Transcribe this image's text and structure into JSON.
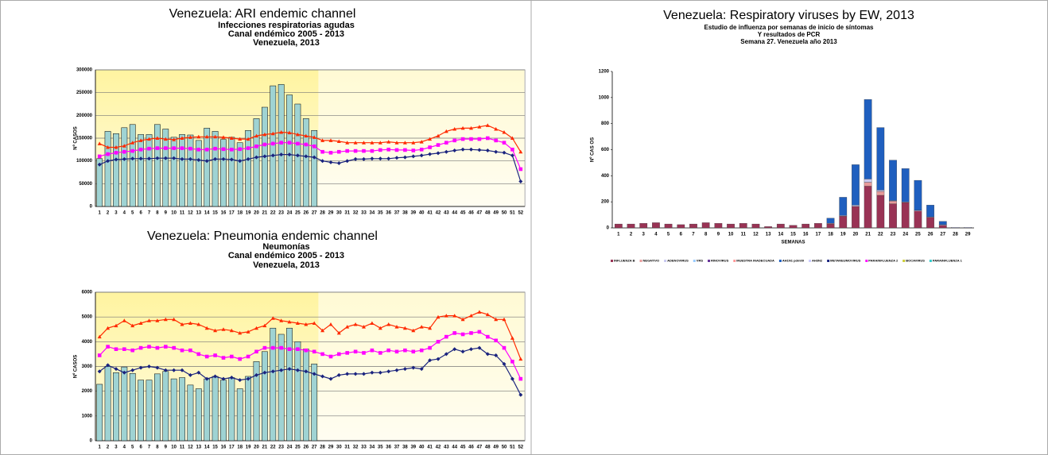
{
  "chart_data": [
    {
      "type": "combo",
      "title": "Venezuela: ARI endemic channel",
      "subtitles": [
        "Infecciones respiratorias agudas",
        "Canal endémico 2005 - 2013",
        "Venezuela, 2013"
      ],
      "ylabel": "Nº CASOS",
      "categories": [
        "1",
        "2",
        "3",
        "4",
        "5",
        "6",
        "7",
        "8",
        "9",
        "10",
        "11",
        "12",
        "13",
        "14",
        "15",
        "16",
        "17",
        "18",
        "19",
        "20",
        "21",
        "22",
        "23",
        "24",
        "25",
        "26",
        "27",
        "28",
        "29",
        "30",
        "31",
        "32",
        "33",
        "34",
        "35",
        "36",
        "37",
        "38",
        "39",
        "40",
        "41",
        "42",
        "43",
        "44",
        "45",
        "46",
        "47",
        "48",
        "49",
        "50",
        "51",
        "52"
      ],
      "ylim": [
        0,
        300000
      ],
      "yticks": [
        0,
        50000,
        100000,
        150000,
        200000,
        250000,
        300000
      ],
      "grid": true,
      "series": [
        {
          "type": "bar",
          "color": "#9fd3d3",
          "values": [
            105000,
            165000,
            160000,
            173000,
            180000,
            158000,
            158000,
            180000,
            170000,
            152000,
            158000,
            157000,
            145000,
            172000,
            165000,
            147000,
            152000,
            140000,
            167000,
            193000,
            218000,
            265000,
            268000,
            245000,
            225000,
            193000,
            167000,
            null,
            null,
            null,
            null,
            null,
            null,
            null,
            null,
            null,
            null,
            null,
            null,
            null,
            null,
            null,
            null,
            null,
            null,
            null,
            null,
            null,
            null,
            null,
            null,
            null
          ]
        },
        {
          "type": "line",
          "marker": "triangle",
          "color": "#ff2a00",
          "values": [
            138000,
            130000,
            130000,
            133000,
            140000,
            145000,
            148000,
            150000,
            148000,
            147000,
            150000,
            152000,
            153000,
            153000,
            153000,
            152000,
            150000,
            148000,
            148000,
            155000,
            158000,
            160000,
            163000,
            162000,
            158000,
            155000,
            152000,
            145000,
            145000,
            143000,
            140000,
            140000,
            140000,
            140000,
            140000,
            142000,
            140000,
            140000,
            140000,
            142000,
            148000,
            155000,
            165000,
            170000,
            172000,
            172000,
            175000,
            178000,
            170000,
            163000,
            150000,
            120000
          ]
        },
        {
          "type": "line",
          "marker": "square",
          "color": "#ff00ff",
          "values": [
            110000,
            115000,
            118000,
            120000,
            122000,
            125000,
            127000,
            128000,
            128000,
            128000,
            128000,
            127000,
            125000,
            125000,
            127000,
            126000,
            125000,
            126000,
            128000,
            132000,
            136000,
            138000,
            140000,
            140000,
            138000,
            136000,
            132000,
            120000,
            118000,
            120000,
            122000,
            122000,
            122000,
            122000,
            124000,
            125000,
            124000,
            124000,
            123000,
            125000,
            130000,
            135000,
            140000,
            145000,
            148000,
            148000,
            148000,
            150000,
            145000,
            140000,
            125000,
            82000
          ]
        },
        {
          "type": "line",
          "marker": "diamond",
          "color": "#1a237e",
          "values": [
            92000,
            100000,
            103000,
            104000,
            105000,
            105000,
            105000,
            106000,
            106000,
            106000,
            104000,
            104000,
            102000,
            100000,
            104000,
            104000,
            103000,
            100000,
            104000,
            108000,
            110000,
            112000,
            114000,
            114000,
            112000,
            110000,
            108000,
            100000,
            97000,
            95000,
            100000,
            104000,
            104000,
            105000,
            105000,
            105000,
            107000,
            108000,
            110000,
            112000,
            115000,
            117000,
            120000,
            123000,
            125000,
            125000,
            124000,
            123000,
            120000,
            118000,
            112000,
            55000
          ]
        }
      ]
    },
    {
      "type": "combo",
      "title": "Venezuela: Pneumonia endemic channel",
      "subtitles": [
        "Neumonías",
        "Canal endémico 2005 - 2013",
        "Venezuela, 2013"
      ],
      "ylabel": "Nº CASOS",
      "categories": [
        "1",
        "2",
        "3",
        "4",
        "5",
        "6",
        "7",
        "8",
        "9",
        "10",
        "11",
        "12",
        "13",
        "14",
        "15",
        "16",
        "17",
        "18",
        "19",
        "20",
        "21",
        "22",
        "23",
        "24",
        "25",
        "26",
        "27",
        "28",
        "29",
        "30",
        "31",
        "32",
        "33",
        "34",
        "35",
        "36",
        "37",
        "38",
        "39",
        "40",
        "41",
        "42",
        "43",
        "44",
        "45",
        "46",
        "47",
        "48",
        "49",
        "50",
        "51",
        "52"
      ],
      "ylim": [
        0,
        6000
      ],
      "yticks": [
        0,
        1000,
        2000,
        3000,
        4000,
        5000,
        6000
      ],
      "grid": true,
      "series": [
        {
          "type": "bar",
          "color": "#9fd3d3",
          "values": [
            2280,
            3000,
            2750,
            2980,
            2720,
            2450,
            2450,
            2700,
            2800,
            2500,
            2550,
            2250,
            2100,
            2500,
            2600,
            2450,
            2550,
            2100,
            2600,
            3200,
            3600,
            4550,
            4300,
            4550,
            4000,
            3700,
            3100,
            null,
            null,
            null,
            null,
            null,
            null,
            null,
            null,
            null,
            null,
            null,
            null,
            null,
            null,
            null,
            null,
            null,
            null,
            null,
            null,
            null,
            null,
            null,
            null,
            null
          ]
        },
        {
          "type": "line",
          "marker": "triangle",
          "color": "#ff2a00",
          "values": [
            4200,
            4550,
            4650,
            4850,
            4650,
            4750,
            4850,
            4850,
            4900,
            4900,
            4700,
            4750,
            4700,
            4550,
            4450,
            4500,
            4450,
            4350,
            4400,
            4550,
            4650,
            4950,
            4850,
            4800,
            4750,
            4700,
            4750,
            4450,
            4700,
            4350,
            4600,
            4700,
            4600,
            4750,
            4550,
            4700,
            4600,
            4550,
            4450,
            4600,
            4550,
            5000,
            5050,
            5050,
            4900,
            5050,
            5200,
            5100,
            4900,
            4900,
            4150,
            3300
          ]
        },
        {
          "type": "line",
          "marker": "square",
          "color": "#ff00ff",
          "values": [
            3450,
            3800,
            3700,
            3700,
            3650,
            3750,
            3800,
            3750,
            3800,
            3750,
            3650,
            3650,
            3500,
            3400,
            3450,
            3350,
            3400,
            3300,
            3400,
            3600,
            3750,
            3750,
            3750,
            3700,
            3700,
            3650,
            3600,
            3500,
            3400,
            3500,
            3550,
            3600,
            3550,
            3650,
            3550,
            3650,
            3600,
            3650,
            3600,
            3650,
            3750,
            4000,
            4200,
            4350,
            4300,
            4350,
            4400,
            4200,
            4050,
            3750,
            3200,
            2500
          ]
        },
        {
          "type": "line",
          "marker": "diamond",
          "color": "#1a237e",
          "values": [
            2800,
            3050,
            2900,
            2750,
            2850,
            2950,
            3000,
            2950,
            2850,
            2850,
            2850,
            2650,
            2750,
            2500,
            2600,
            2500,
            2550,
            2450,
            2500,
            2650,
            2750,
            2800,
            2850,
            2900,
            2850,
            2800,
            2700,
            2600,
            2500,
            2650,
            2700,
            2700,
            2700,
            2750,
            2750,
            2800,
            2850,
            2900,
            2950,
            2900,
            3250,
            3300,
            3500,
            3700,
            3600,
            3700,
            3750,
            3500,
            3450,
            3100,
            2500,
            1850
          ]
        }
      ]
    },
    {
      "type": "stacked_bar",
      "title": "Venezuela: Respiratory viruses by EW, 2013",
      "subtitles": [
        "Estudio de influenza por semanas de inicio de síntomas",
        "Y resultados de PCR",
        "Semana 27. Venezuela año 2013"
      ],
      "ylabel": "Nº CAS OS",
      "xlabel": "SEMANAS",
      "categories": [
        "1",
        "2",
        "3",
        "4",
        "5",
        "6",
        "7",
        "8",
        "9",
        "10",
        "11",
        "12",
        "13",
        "14",
        "15",
        "16",
        "17",
        "18",
        "19",
        "20",
        "21",
        "22",
        "23",
        "24",
        "25",
        "26",
        "27",
        "28",
        "29"
      ],
      "ylim": [
        0,
        1200
      ],
      "yticks": [
        0,
        200,
        400,
        600,
        800,
        1000,
        1200
      ],
      "grid": false,
      "series": [
        {
          "name": "INFLUENZA B",
          "color": "#993355",
          "values": [
            30,
            30,
            35,
            40,
            30,
            25,
            30,
            40,
            35,
            30,
            35,
            30,
            10,
            30,
            20,
            30,
            35,
            30,
            90,
            165,
            320,
            250,
            185,
            195,
            130,
            80,
            20,
            0,
            0
          ]
        },
        {
          "name": "NEGATIVO",
          "color": "#e89a9a",
          "values": [
            0,
            0,
            0,
            0,
            0,
            0,
            0,
            0,
            0,
            0,
            0,
            0,
            0,
            0,
            0,
            0,
            0,
            5,
            0,
            0,
            30,
            30,
            20,
            0,
            0,
            0,
            0,
            0,
            0
          ]
        },
        {
          "name": "ADENOVIRUS",
          "color": "#c9c9f0",
          "values": [
            0,
            0,
            0,
            0,
            0,
            0,
            0,
            0,
            0,
            0,
            0,
            0,
            0,
            0,
            0,
            0,
            0,
            0,
            5,
            10,
            25,
            10,
            5,
            5,
            5,
            5,
            5,
            5,
            5
          ]
        },
        {
          "name": "VRS",
          "color": "#99ccff",
          "values": [
            0,
            0,
            0,
            0,
            0,
            0,
            0,
            0,
            0,
            0,
            0,
            0,
            0,
            0,
            0,
            0,
            0,
            0,
            0,
            0,
            0,
            0,
            0,
            0,
            0,
            0,
            0,
            0,
            0
          ]
        },
        {
          "name": "RINOVIRUS",
          "color": "#663399",
          "values": [
            0,
            0,
            0,
            0,
            0,
            0,
            0,
            0,
            0,
            0,
            0,
            0,
            0,
            0,
            0,
            0,
            0,
            0,
            0,
            0,
            0,
            0,
            0,
            0,
            0,
            0,
            0,
            0,
            0
          ]
        },
        {
          "name": "MUESTRA INADECUADA",
          "color": "#ff9999",
          "values": [
            0,
            0,
            0,
            0,
            0,
            0,
            0,
            0,
            0,
            0,
            0,
            0,
            0,
            0,
            0,
            0,
            0,
            0,
            0,
            0,
            0,
            0,
            0,
            0,
            0,
            0,
            0,
            0,
            0
          ]
        },
        {
          "name": "AH1N1 pdm09",
          "color": "#1f5fbf",
          "values": [
            0,
            0,
            0,
            0,
            0,
            0,
            0,
            0,
            0,
            0,
            0,
            0,
            0,
            0,
            0,
            0,
            0,
            40,
            140,
            310,
            610,
            480,
            310,
            255,
            230,
            90,
            25,
            0,
            0
          ]
        },
        {
          "name": "AH3N2",
          "color": "#ccccff",
          "values": [
            0,
            0,
            0,
            0,
            0,
            0,
            0,
            0,
            0,
            0,
            0,
            0,
            0,
            0,
            0,
            0,
            0,
            0,
            0,
            0,
            0,
            0,
            0,
            0,
            0,
            0,
            0,
            0,
            0
          ]
        },
        {
          "name": "METANEUMOVIRUS",
          "color": "#1a237e",
          "values": [
            0,
            0,
            0,
            0,
            0,
            0,
            0,
            0,
            0,
            0,
            0,
            0,
            0,
            0,
            0,
            0,
            0,
            0,
            0,
            0,
            0,
            0,
            0,
            0,
            0,
            0,
            0,
            0,
            0
          ]
        },
        {
          "name": "PARAINFLUENZA 2",
          "color": "#ff00ff",
          "values": [
            0,
            0,
            0,
            0,
            0,
            0,
            0,
            0,
            0,
            0,
            0,
            0,
            0,
            0,
            0,
            0,
            0,
            0,
            0,
            0,
            0,
            0,
            0,
            0,
            0,
            0,
            0,
            0,
            0
          ]
        },
        {
          "name": "BOCAVIRUS",
          "color": "#cccc33",
          "values": [
            0,
            0,
            0,
            0,
            0,
            0,
            0,
            0,
            0,
            0,
            0,
            0,
            0,
            0,
            0,
            0,
            0,
            0,
            0,
            0,
            0,
            0,
            0,
            0,
            0,
            0,
            0,
            0,
            0
          ]
        },
        {
          "name": "PARAINFLUENZA 1",
          "color": "#33cccc",
          "values": [
            0,
            0,
            0,
            0,
            0,
            0,
            0,
            0,
            0,
            0,
            0,
            0,
            0,
            0,
            0,
            0,
            0,
            0,
            0,
            0,
            0,
            0,
            0,
            0,
            0,
            0,
            0,
            0,
            0
          ]
        }
      ]
    }
  ]
}
